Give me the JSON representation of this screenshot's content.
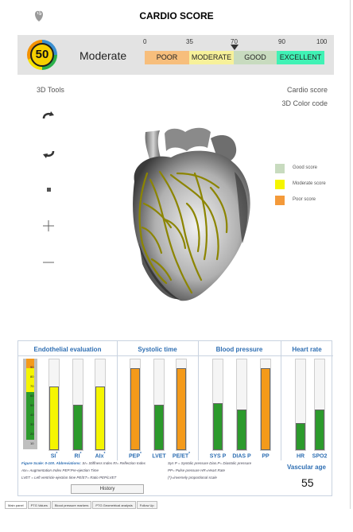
{
  "app": {
    "title": "CARDIO SCORE"
  },
  "score": {
    "value": "50",
    "label": "Moderate",
    "ticks": [
      "0",
      "35",
      "70",
      "90",
      "100"
    ],
    "segments": [
      {
        "label": "POOR",
        "color": "#f7be7c"
      },
      {
        "label": "MODERATE",
        "color": "#f7f19a"
      },
      {
        "label": "GOOD",
        "color": "#c8dbbf"
      },
      {
        "label": "EXCELLENT",
        "color": "#40f2b5"
      }
    ],
    "marker_value": 50
  },
  "tools": {
    "title": "3D Tools",
    "items": [
      "rotate-cw-icon",
      "rotate-ccw-icon",
      "stop-icon",
      "zoom-in-icon",
      "zoom-out-icon"
    ]
  },
  "cardio_panel": {
    "title": "Cardio score",
    "subtitle": "3D Color code",
    "legend": [
      {
        "label": "Good score",
        "color": "#c8dbbf"
      },
      {
        "label": "Moderate score",
        "color": "#f5f500"
      },
      {
        "label": "Poor score",
        "color": "#f49a3a"
      }
    ]
  },
  "sections": {
    "endothelial": "Endothelial evaluation",
    "systolic": "Systolic time",
    "blood_pressure": "Blood pressure",
    "heart_rate": "Heart rate"
  },
  "gauge": {
    "labels": [
      "90",
      "80",
      "70",
      "60",
      "50",
      "40",
      "30",
      "20",
      "10"
    ]
  },
  "bars": [
    {
      "label": "SI",
      "sup": "*",
      "value": 70,
      "color": "#f5f500"
    },
    {
      "label": "RI",
      "sup": "*",
      "value": 50,
      "color": "#2c9a2c"
    },
    {
      "label": "AIx",
      "sup": "*",
      "value": 70,
      "color": "#f5f500"
    },
    {
      "label": "PEP",
      "sup": "*",
      "value": 90,
      "color": "#f49a1a"
    },
    {
      "label": "LVET",
      "sup": "",
      "value": 50,
      "color": "#2c9a2c"
    },
    {
      "label": "PE/ET",
      "sup": "*",
      "value": 90,
      "color": "#f49a1a"
    },
    {
      "label": "SYS P",
      "sup": "",
      "value": 52,
      "color": "#2c9a2c"
    },
    {
      "label": "DIAS P",
      "sup": "",
      "value": 45,
      "color": "#2c9a2c"
    },
    {
      "label": "PP",
      "sup": "",
      "value": 90,
      "color": "#f49a1a"
    },
    {
      "label": "HR",
      "sup": "",
      "value": 30,
      "color": "#2c9a2c"
    },
    {
      "label": "SPO2",
      "sup": "",
      "value": 45,
      "color": "#2c9a2c"
    }
  ],
  "footnotes": {
    "scale": "Figure Scale: 0-100.",
    "abbr_title": "Abbreviations:",
    "line1": "SI= Stiffness Index  RI= Reflection Index",
    "line2": "AIx= Augmentation Index PEP:Pre-ejection Time",
    "line3": "LVET = Left ventricle ejection time PE/ET= Ratio PEP/LVET",
    "line4": "Sys P = Systolic pressure Dias.P= Diastolic pressure",
    "line5": "PP= Pulse pressure    HR=Heart Rate",
    "line6": "(*)=inversely proportional scale"
  },
  "history_button": "History",
  "vascular_age": {
    "title": "Vascular age",
    "value": "55"
  },
  "tabs": [
    "Main panel",
    "PTG Values",
    "Blood pressure markers",
    "PTG Geometrical analysis",
    "Follow Up"
  ]
}
